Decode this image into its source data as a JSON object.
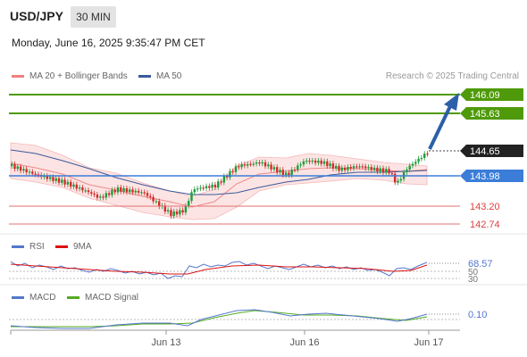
{
  "header": {
    "symbol": "USD/JPY",
    "timeframe": "30 MIN",
    "datetime": "Monday, June 16, 2025 9:35:47 PM CET"
  },
  "main_chart": {
    "legend": [
      {
        "label": "MA 20 + Bollinger Bands",
        "color": "#f08080"
      },
      {
        "label": "MA 50",
        "color": "#3a5a9a"
      }
    ],
    "copyright": "Research © 2025 Trading Central",
    "levels": {
      "resistance_2": "146.09",
      "resistance_1": "145.63",
      "last_price": "144.65",
      "pivot": "143.98",
      "support_1": "143.20",
      "support_2": "142.74"
    },
    "colors": {
      "resistance": "#4f9a0a",
      "pivot": "#3b7dd8",
      "support": "#e07070",
      "last": "#222222",
      "arrow": "#2b5fa8"
    }
  },
  "rsi": {
    "legend": [
      {
        "label": "RSI",
        "color": "#5577cc"
      },
      {
        "label": "9MA",
        "color": "#dd1111"
      }
    ],
    "value": "68.57",
    "levels": [
      "50",
      "30"
    ]
  },
  "macd": {
    "legend": [
      {
        "label": "MACD",
        "color": "#5577cc"
      },
      {
        "label": "MACD Signal",
        "color": "#55aa22"
      }
    ],
    "value": "0.10"
  },
  "x_axis": {
    "labels": [
      "Jun 13",
      "Jun 16",
      "Jun 17"
    ]
  }
}
